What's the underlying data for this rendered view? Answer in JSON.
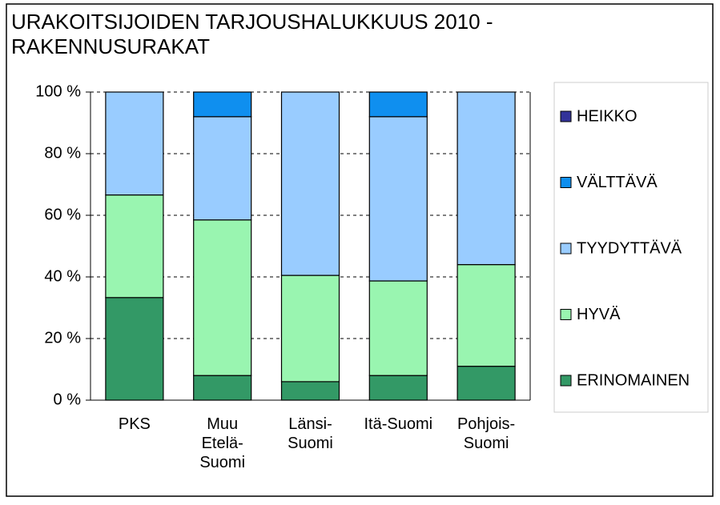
{
  "chart_data": {
    "type": "stacked-bar",
    "title": "URAKOITSIJOIDEN TARJOUSHALUKKUUS 2010 -\nRAKENNUSURAKAT",
    "categories": [
      "PKS",
      "Muu\nEtelä-\nSuomi",
      "Länsi-\nSuomi",
      "Itä-Suomi",
      "Pohjois-\nSuomi"
    ],
    "series": [
      {
        "name": "ERINOMAINEN",
        "color": "#339966",
        "values": [
          33.3,
          8,
          6,
          8,
          11
        ]
      },
      {
        "name": "HYVÄ",
        "color": "#99f5b0",
        "values": [
          33.3,
          50.5,
          34.5,
          30.7,
          33
        ]
      },
      {
        "name": "TYYDYTTÄVÄ",
        "color": "#99ccff",
        "values": [
          33.4,
          33.5,
          59.5,
          53.3,
          56
        ]
      },
      {
        "name": "VÄLTTÄVÄ",
        "color": "#0f8fef",
        "values": [
          0,
          8,
          0,
          8,
          0
        ]
      },
      {
        "name": "HEIKKO",
        "color": "#333399",
        "values": [
          0,
          0,
          0,
          0,
          0
        ]
      }
    ],
    "ylim": [
      0,
      100
    ],
    "yticks": [
      {
        "value": 0,
        "label": "0 %"
      },
      {
        "value": 20,
        "label": "20 %"
      },
      {
        "value": 40,
        "label": "40 %"
      },
      {
        "value": 60,
        "label": "60 %"
      },
      {
        "value": 80,
        "label": "80 %"
      },
      {
        "value": 100,
        "label": "100 %"
      }
    ],
    "grid": true
  }
}
